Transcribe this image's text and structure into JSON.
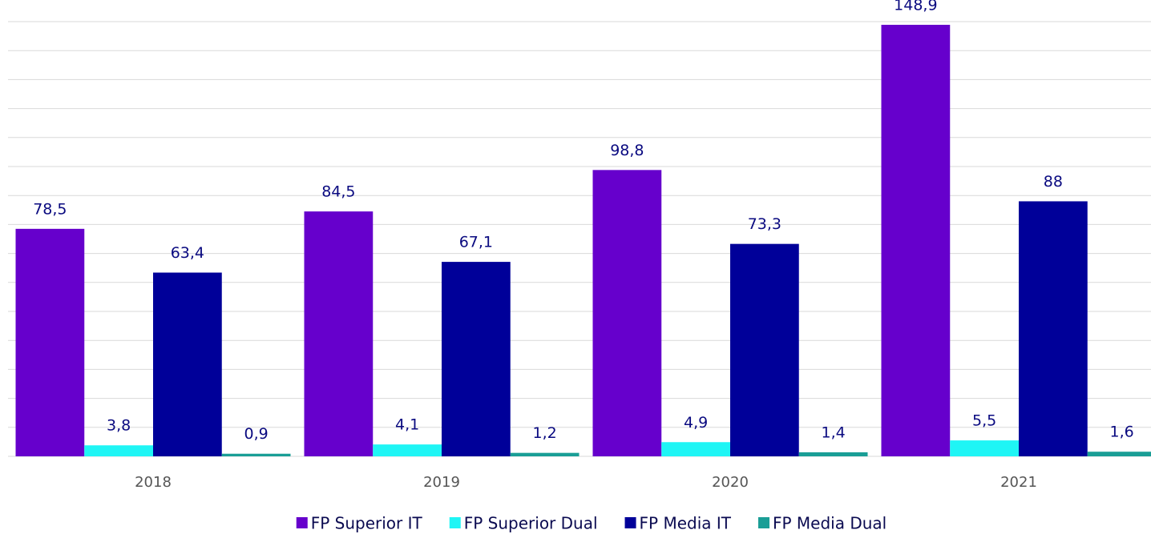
{
  "chart_data": {
    "type": "bar",
    "categories": [
      "2018",
      "2019",
      "2020",
      "2021"
    ],
    "series": [
      {
        "name": "FP Superior IT",
        "color": "#6600cc",
        "values": [
          78.5,
          84.5,
          98.8,
          148.9
        ],
        "value_labels": [
          "78,5",
          "84,5",
          "98,8",
          "148,9"
        ]
      },
      {
        "name": "FP Superior Dual",
        "color": "#1ff5f5",
        "values": [
          3.8,
          4.1,
          4.9,
          5.5
        ],
        "value_labels": [
          "3,8",
          "4,1",
          "4,9",
          "5,5"
        ]
      },
      {
        "name": "FP Media IT",
        "color": "#000099",
        "values": [
          63.4,
          67.1,
          73.3,
          88
        ],
        "value_labels": [
          "63,4",
          "67,1",
          "73,3",
          "88"
        ]
      },
      {
        "name": "FP Media Dual",
        "color": "#1a9e96",
        "values": [
          0.9,
          1.2,
          1.4,
          1.6
        ],
        "value_labels": [
          "0,9",
          "1,2",
          "1,4",
          "1,6"
        ]
      }
    ],
    "ylim": [
      0,
      150
    ],
    "yticks": [
      0,
      10,
      20,
      30,
      40,
      50,
      60,
      70,
      80,
      90,
      100,
      110,
      120,
      130,
      140,
      150
    ],
    "grid": true,
    "legend": "bottom"
  }
}
